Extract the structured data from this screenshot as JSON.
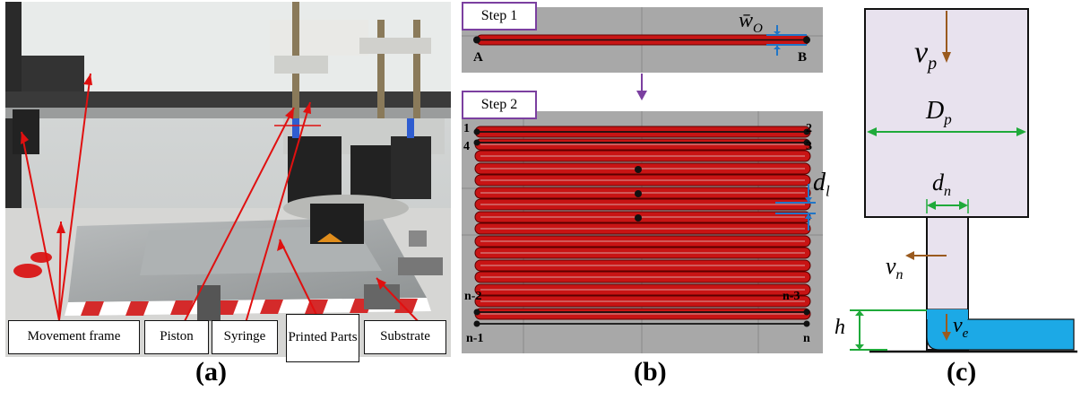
{
  "panel_a": {
    "labels": [
      "Movement frame",
      "Piston",
      "Syringe",
      "Printed Parts",
      "Substrate"
    ],
    "caption": "(a)"
  },
  "panel_b": {
    "step1": "Step 1",
    "step2": "Step 2",
    "w_symbol": "w̄",
    "w_sub": "O",
    "point_a": "A",
    "point_b": "B",
    "d_symbol": "d",
    "d_sub": "l",
    "idx_1": "1",
    "idx_2": "2",
    "idx_3": "3",
    "idx_4": "4",
    "idx_n2": "n-2",
    "idx_n3": "n-3",
    "idx_n1": "n-1",
    "idx_n": "n",
    "caption": "(b)"
  },
  "panel_c": {
    "vp": "v",
    "vp_sub": "p",
    "Dp": "D",
    "Dp_sub": "p",
    "dn": "d",
    "dn_sub": "n",
    "vn": "v",
    "vn_sub": "n",
    "ve": "v",
    "ve_sub": "e",
    "h": "h",
    "caption": "(c)"
  },
  "colors": {
    "line_red": "#e01010",
    "track": "#c81414",
    "purple": "#7b3fa0",
    "green": "#1faa3a",
    "blue": "#2176c7",
    "brown": "#9a5a1e",
    "lavender": "#e8e2ee",
    "cyan": "#1ca9e6"
  }
}
